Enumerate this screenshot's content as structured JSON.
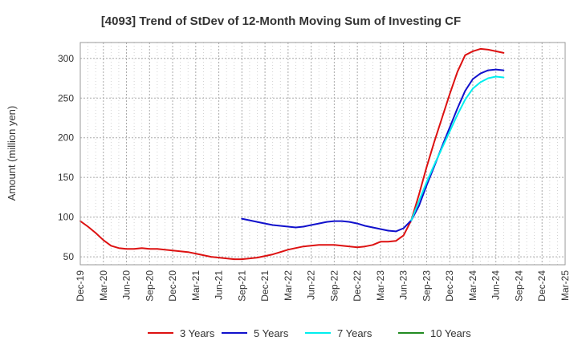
{
  "chart_data": {
    "type": "line",
    "title": "[4093]  Trend of StDev of 12-Month Moving Sum of Investing CF",
    "ylabel": "Amount (million yen)",
    "xlabel": "",
    "ylim": [
      40,
      320
    ],
    "yticks": [
      50,
      100,
      150,
      200,
      250,
      300
    ],
    "categories": [
      "Dec-19",
      "Mar-20",
      "Jun-20",
      "Sep-20",
      "Dec-20",
      "Mar-21",
      "Jun-21",
      "Sep-21",
      "Dec-21",
      "Mar-22",
      "Jun-22",
      "Sep-22",
      "Dec-22",
      "Mar-23",
      "Jun-23",
      "Sep-23",
      "Dec-23",
      "Mar-24",
      "Jun-24",
      "Sep-24",
      "Dec-24",
      "Mar-25"
    ],
    "grid": true,
    "legend_position": "bottom",
    "series": [
      {
        "name": "3 Years",
        "color": "#dd1111",
        "points": [
          [
            0,
            95
          ],
          [
            1,
            88
          ],
          [
            2,
            80
          ],
          [
            3,
            71
          ],
          [
            4,
            64
          ],
          [
            5,
            61
          ],
          [
            6,
            60
          ],
          [
            7,
            60
          ],
          [
            8,
            61
          ],
          [
            9,
            60
          ],
          [
            10,
            60
          ],
          [
            11,
            59
          ],
          [
            12,
            58
          ],
          [
            13,
            57
          ],
          [
            14,
            56
          ],
          [
            15,
            54
          ],
          [
            16,
            52
          ],
          [
            17,
            50
          ],
          [
            18,
            49
          ],
          [
            19,
            48
          ],
          [
            20,
            47
          ],
          [
            21,
            47
          ],
          [
            22,
            48
          ],
          [
            23,
            49
          ],
          [
            24,
            51
          ],
          [
            25,
            53
          ],
          [
            26,
            56
          ],
          [
            27,
            59
          ],
          [
            28,
            61
          ],
          [
            29,
            63
          ],
          [
            30,
            64
          ],
          [
            31,
            65
          ],
          [
            32,
            65
          ],
          [
            33,
            65
          ],
          [
            34,
            64
          ],
          [
            35,
            63
          ],
          [
            36,
            62
          ],
          [
            37,
            63
          ],
          [
            38,
            65
          ],
          [
            39,
            69
          ],
          [
            40,
            69
          ],
          [
            41,
            70
          ],
          [
            42,
            77
          ],
          [
            43,
            96
          ],
          [
            44,
            128
          ],
          [
            45,
            163
          ],
          [
            46,
            195
          ],
          [
            47,
            225
          ],
          [
            48,
            255
          ],
          [
            49,
            283
          ],
          [
            50,
            304
          ],
          [
            51,
            309
          ],
          [
            52,
            312
          ],
          [
            53,
            311
          ],
          [
            54,
            309
          ],
          [
            55,
            307
          ]
        ]
      },
      {
        "name": "5 Years",
        "color": "#1111cc",
        "points": [
          [
            21,
            98
          ],
          [
            22,
            96
          ],
          [
            23,
            94
          ],
          [
            24,
            92
          ],
          [
            25,
            90
          ],
          [
            26,
            89
          ],
          [
            27,
            88
          ],
          [
            28,
            87
          ],
          [
            29,
            88
          ],
          [
            30,
            90
          ],
          [
            31,
            92
          ],
          [
            32,
            94
          ],
          [
            33,
            95
          ],
          [
            34,
            95
          ],
          [
            35,
            94
          ],
          [
            36,
            92
          ],
          [
            37,
            89
          ],
          [
            38,
            87
          ],
          [
            39,
            85
          ],
          [
            40,
            83
          ],
          [
            41,
            82
          ],
          [
            42,
            86
          ],
          [
            43,
            96
          ],
          [
            44,
            114
          ],
          [
            45,
            140
          ],
          [
            46,
            164
          ],
          [
            47,
            189
          ],
          [
            48,
            213
          ],
          [
            49,
            237
          ],
          [
            50,
            259
          ],
          [
            51,
            274
          ],
          [
            52,
            281
          ],
          [
            53,
            285
          ],
          [
            54,
            286
          ],
          [
            55,
            285
          ]
        ]
      },
      {
        "name": "7 Years",
        "color": "#00eeee",
        "points": [
          [
            43,
            96
          ],
          [
            44,
            120
          ],
          [
            45,
            144
          ],
          [
            46,
            166
          ],
          [
            47,
            187
          ],
          [
            48,
            208
          ],
          [
            49,
            229
          ],
          [
            50,
            248
          ],
          [
            51,
            262
          ],
          [
            52,
            270
          ],
          [
            53,
            275
          ],
          [
            54,
            277
          ],
          [
            55,
            276
          ]
        ]
      },
      {
        "name": "10 Years",
        "color": "#228b22",
        "points": []
      }
    ]
  }
}
